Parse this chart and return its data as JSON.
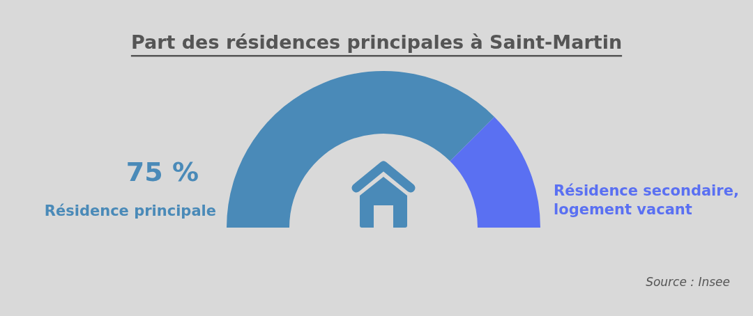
{
  "chart_data": {
    "type": "donut",
    "title": "Part des résidences principales à Saint-Martin",
    "categories": [
      "Résidence principale",
      "Résidence secondaire, logement vacant"
    ],
    "values": [
      75,
      25
    ],
    "colors": [
      "#4a8ab8",
      "#5a70f2"
    ],
    "value_labels": [
      "75 %",
      null
    ],
    "annotations": [
      "Source : Insee"
    ]
  }
}
